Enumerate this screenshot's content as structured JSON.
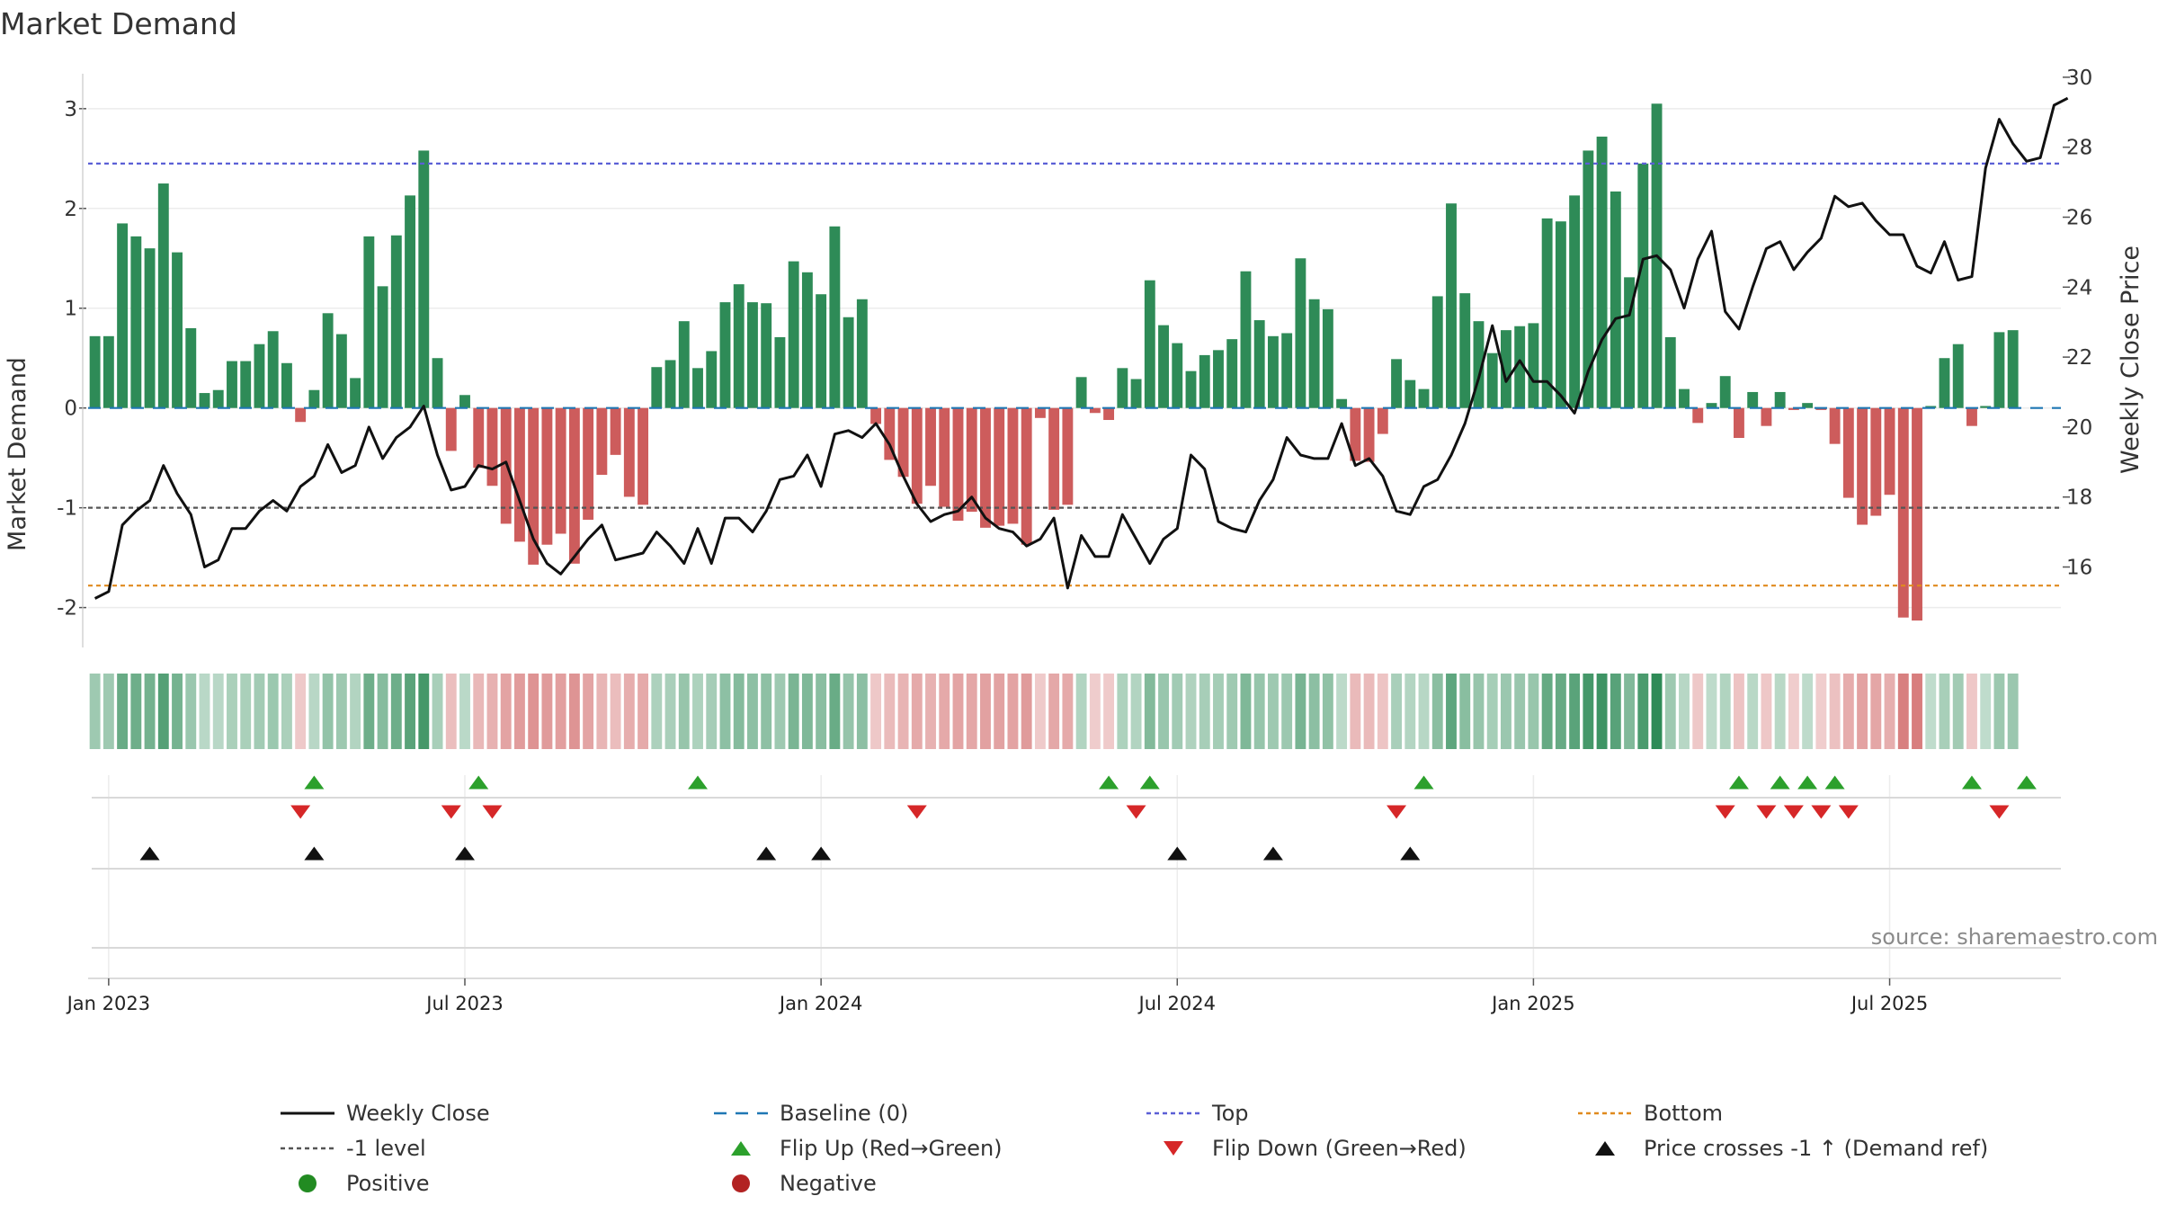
{
  "chart_data": {
    "type": "bar",
    "title": "Market Demand",
    "ylabel_left": "Market Demand",
    "ylabel_right": "Weekly Close Price",
    "y_left_range": [
      -2.4,
      3.35
    ],
    "y_left_ticks": [
      "-2",
      "-1",
      "0",
      "1",
      "2",
      "3"
    ],
    "y_right_range": [
      13.7,
      30.1
    ],
    "y_right_ticks": [
      "16",
      "18",
      "20",
      "22",
      "24",
      "26",
      "28",
      "30"
    ],
    "x_ticks": [
      {
        "label": "Jan 2023",
        "week": 1
      },
      {
        "label": "Jul 2023",
        "week": 27
      },
      {
        "label": "Jan 2024",
        "week": 53
      },
      {
        "label": "Jul 2024",
        "week": 79
      },
      {
        "label": "Jan 2025",
        "week": 105
      },
      {
        "label": "Jul 2025",
        "week": 131
      }
    ],
    "week_start": 0,
    "week_end": 143,
    "reference_lines": {
      "top": 2.45,
      "minus_one": -1,
      "bottom": -1.78,
      "baseline": 0
    },
    "demand": [
      0.72,
      0.72,
      1.85,
      1.72,
      1.6,
      2.25,
      1.56,
      0.8,
      0.15,
      0.18,
      0.47,
      0.47,
      0.64,
      0.77,
      0.45,
      -0.14,
      0.18,
      0.95,
      0.74,
      0.3,
      1.72,
      1.22,
      1.73,
      2.13,
      2.58,
      0.5,
      -0.43,
      0.13,
      -0.6,
      -0.78,
      -1.16,
      -1.34,
      -1.57,
      -1.37,
      -1.26,
      -1.56,
      -1.12,
      -0.67,
      -0.47,
      -0.89,
      -0.97,
      0.41,
      0.48,
      0.87,
      0.4,
      0.57,
      1.06,
      1.24,
      1.06,
      1.05,
      0.71,
      1.47,
      1.36,
      1.14,
      1.82,
      0.91,
      1.09,
      -0.16,
      -0.52,
      -0.69,
      -0.96,
      -0.78,
      -0.99,
      -1.13,
      -1.04,
      -1.2,
      -1.18,
      -1.16,
      -1.37,
      -0.1,
      -1.02,
      -0.97,
      0.31,
      -0.05,
      -0.12,
      0.4,
      0.29,
      1.28,
      0.83,
      0.65,
      0.37,
      0.53,
      0.58,
      0.69,
      1.37,
      0.88,
      0.72,
      0.75,
      1.5,
      1.09,
      0.99,
      0.09,
      -0.53,
      -0.54,
      -0.26,
      0.49,
      0.28,
      0.19,
      1.12,
      2.05,
      1.15,
      0.87,
      0.55,
      0.78,
      0.82,
      0.85,
      1.9,
      1.87,
      2.13,
      2.58,
      2.72,
      2.17,
      1.31,
      2.45,
      3.05,
      0.71,
      0.19,
      -0.15,
      0.05,
      0.32,
      -0.3,
      0.16,
      -0.18,
      0.16,
      -0.02,
      0.05,
      -0.02,
      -0.36,
      -0.9,
      -1.17,
      -1.08,
      -0.87,
      -2.1,
      -2.13,
      0.02,
      0.5,
      0.64,
      -0.18,
      0.02,
      0.76,
      0.78
    ],
    "weekly_close": [
      15.1,
      15.3,
      17.2,
      17.6,
      17.9,
      18.9,
      18.1,
      17.5,
      16.0,
      16.2,
      17.1,
      17.1,
      17.6,
      17.9,
      17.6,
      18.3,
      18.6,
      19.5,
      18.7,
      18.9,
      20.0,
      19.1,
      19.7,
      20.0,
      20.6,
      19.2,
      18.2,
      18.3,
      18.9,
      18.8,
      19.0,
      17.9,
      16.8,
      16.1,
      15.8,
      16.3,
      16.8,
      17.2,
      16.2,
      16.3,
      16.4,
      17.0,
      16.6,
      16.1,
      17.1,
      16.1,
      17.4,
      17.4,
      17.0,
      17.6,
      18.5,
      18.6,
      19.2,
      18.3,
      19.8,
      19.9,
      19.7,
      20.1,
      19.5,
      18.6,
      17.8,
      17.3,
      17.5,
      17.6,
      18.0,
      17.4,
      17.1,
      17.0,
      16.6,
      16.8,
      17.4,
      15.4,
      16.9,
      16.3,
      16.3,
      17.5,
      16.8,
      16.1,
      16.8,
      17.1,
      19.2,
      18.8,
      17.3,
      17.1,
      17.0,
      17.9,
      18.5,
      19.7,
      19.2,
      19.1,
      19.1,
      20.1,
      18.9,
      19.1,
      18.6,
      17.6,
      17.5,
      18.3,
      18.5,
      19.2,
      20.1,
      21.4,
      22.9,
      21.3,
      21.9,
      21.3,
      21.3,
      20.9,
      20.4,
      21.6,
      22.5,
      23.1,
      23.2,
      24.8,
      24.9,
      24.5,
      23.4,
      24.8,
      25.6,
      23.3,
      22.8,
      24.0,
      25.1,
      25.3,
      24.5,
      25.0,
      25.4,
      26.6,
      26.3,
      26.4,
      25.9,
      25.5,
      25.5,
      24.6,
      24.4,
      25.3,
      24.2,
      24.3,
      27.4,
      28.8,
      28.1,
      27.6,
      27.7,
      29.2,
      29.4
    ],
    "flip_up_weeks": [
      16,
      28,
      44,
      74,
      77,
      97,
      120,
      123,
      125,
      127,
      137,
      141
    ],
    "flip_down_weeks": [
      15,
      26,
      29,
      60,
      76,
      95,
      119,
      122,
      124,
      126,
      128,
      139
    ],
    "price_cross_weeks": [
      4,
      16,
      27,
      49,
      53,
      79,
      86,
      96
    ],
    "legend": [
      {
        "key": "weekly_close",
        "label": "Weekly Close",
        "color": "#111111"
      },
      {
        "key": "baseline",
        "label": "Baseline (0)",
        "color": "#1f77b4"
      },
      {
        "key": "top",
        "label": "Top",
        "color": "#5b5fd6"
      },
      {
        "key": "bottom",
        "label": "Bottom",
        "color": "#e08a1e"
      },
      {
        "key": "minus_one",
        "label": "-1 level",
        "color": "#555555"
      },
      {
        "key": "flip_up",
        "label": "Flip Up (Red→Green)",
        "color": "#2ca02c"
      },
      {
        "key": "flip_down",
        "label": "Flip Down (Green→Red)",
        "color": "#d62728"
      },
      {
        "key": "price_cross",
        "label": "Price crosses -1 ↑ (Demand ref)",
        "color": "#111111"
      },
      {
        "key": "positive",
        "label": "Positive",
        "color": "#228b22"
      },
      {
        "key": "negative",
        "label": "Negative",
        "color": "#b22222"
      }
    ],
    "colors": {
      "positive": "#2e8b57",
      "negative": "#cd5c5c"
    }
  },
  "source": "source: sharemaestro.com"
}
